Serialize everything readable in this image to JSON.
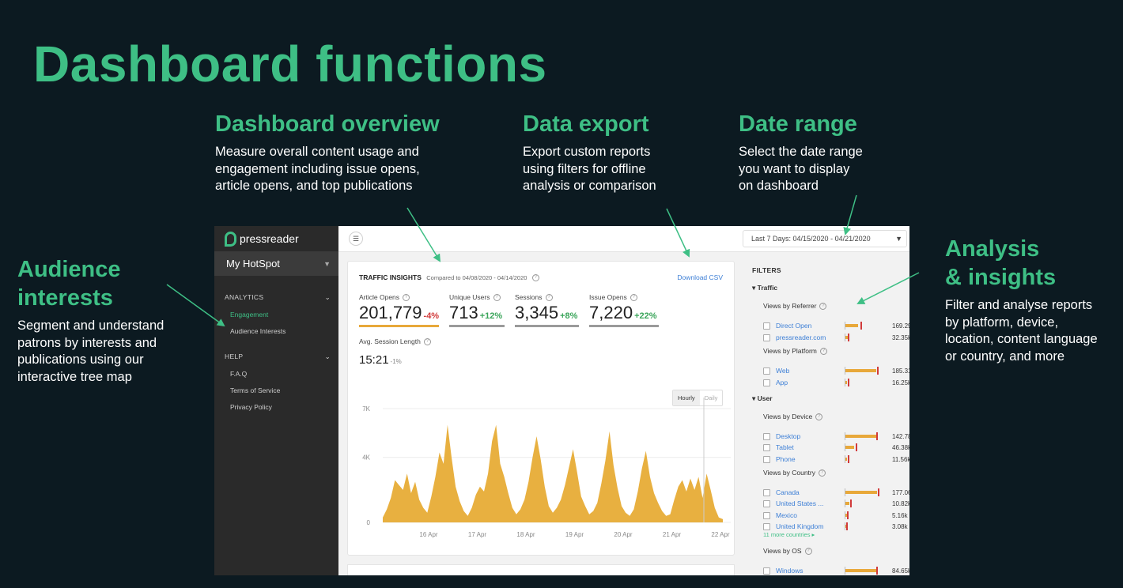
{
  "slide": {
    "title": "Dashboard functions",
    "accent": "#3ebf85",
    "background": "#0c1a21"
  },
  "callouts": {
    "overview": {
      "title": "Dashboard overview",
      "text": "Measure overall content usage and\nengagement including issue opens,\narticle opens, and top publications"
    },
    "export": {
      "title": "Data export",
      "text": "Export custom reports\nusing filters for offline\nanalysis or comparison"
    },
    "date_range": {
      "title": "Date range",
      "text": "Select the date range\nyou want to display\non dashboard"
    },
    "audience": {
      "title": "Audience\ninterests",
      "text": "Segment and understand\npatrons by interests and\npublications using our\ninteractive tree map"
    },
    "analysis": {
      "title": "Analysis\n& insights",
      "text": "Filter and analyse reports\nby platform, device,\nlocation, content language\nor country, and more"
    }
  },
  "dashboard": {
    "brand": "pressreader",
    "hotspot": "My HotSpot",
    "sidebar": {
      "analytics_label": "ANALYTICS",
      "analytics_items": [
        "Engagement",
        "Audience Interests"
      ],
      "help_label": "HELP",
      "help_items": [
        "F.A.Q",
        "Terms of Service",
        "Privacy Policy"
      ]
    },
    "date_select": "Last 7 Days: 04/15/2020 - 04/21/2020",
    "traffic": {
      "title": "TRAFFIC INSIGHTS",
      "compared": "Compared to 04/08/2020 - 04/14/2020",
      "download": "Download CSV",
      "metrics": [
        {
          "label": "Article Opens",
          "value": "201,779",
          "change": "-4%"
        },
        {
          "label": "Unique Users",
          "value": "713",
          "change": "+12%"
        },
        {
          "label": "Sessions",
          "value": "3,345",
          "change": "+8%"
        },
        {
          "label": "Issue Opens",
          "value": "7,220",
          "change": "+22%"
        }
      ],
      "session_label": "Avg. Session Length",
      "session_value": "15:21",
      "session_change": "-1%",
      "toggle": [
        "Hourly",
        "Daily"
      ]
    },
    "filters": {
      "title": "FILTERS",
      "traffic_label": "Traffic",
      "user_label": "User",
      "referrer_label": "Views by Referrer",
      "platform_label": "Views by Platform",
      "device_label": "Views by Device",
      "country_label": "Views by Country",
      "os_label": "Views by OS",
      "more_countries": "11 more countries ▸",
      "referrer": [
        {
          "name": "Direct Open",
          "value": "169.29k",
          "bar": 0.32,
          "tick": 0.38
        },
        {
          "name": "pressreader.com",
          "value": "32.35k",
          "bar": 0.06,
          "tick": 0.05
        }
      ],
      "platform": [
        {
          "name": "Web",
          "value": "185.31k",
          "bar": 0.78,
          "tick": 0.8
        },
        {
          "name": "App",
          "value": "16.25k",
          "bar": 0.04,
          "tick": 0.05
        }
      ],
      "device": [
        {
          "name": "Desktop",
          "value": "142.78k",
          "bar": 0.78,
          "tick": 0.78
        },
        {
          "name": "Tablet",
          "value": "46.38k",
          "bar": 0.22,
          "tick": 0.26
        },
        {
          "name": "Phone",
          "value": "11.56k",
          "bar": 0.04,
          "tick": 0.06
        }
      ],
      "country": [
        {
          "name": "Canada",
          "value": "177.06k",
          "bar": 0.8,
          "tick": 0.82
        },
        {
          "name": "United States ...",
          "value": "10.82k",
          "bar": 0.1,
          "tick": 0.12
        },
        {
          "name": "Mexico",
          "value": "5.16k",
          "bar": 0.03,
          "tick": 0.03
        },
        {
          "name": "United Kingdom",
          "value": "3.08k",
          "bar": 0.02,
          "tick": 0.02
        }
      ],
      "os": [
        {
          "name": "Windows",
          "value": "84.65k",
          "bar": 0.78,
          "tick": 0.78
        }
      ]
    }
  },
  "chart_data": {
    "type": "area",
    "title": "",
    "xlabel": "",
    "ylabel": "",
    "yticks": [
      "7K",
      "4K",
      "0"
    ],
    "ylim": [
      0,
      7000
    ],
    "categories": [
      "16 Apr",
      "17 Apr",
      "18 Apr",
      "19 Apr",
      "20 Apr",
      "21 Apr",
      "22 Apr"
    ],
    "series_color": "#e8b040",
    "x": [
      0,
      2,
      4,
      6,
      8,
      10,
      12,
      14,
      16,
      18,
      20,
      22,
      24,
      26,
      28,
      30,
      32,
      34,
      36,
      38,
      40,
      42,
      44,
      46,
      48,
      50,
      52,
      54,
      56,
      58,
      60,
      62,
      64,
      66,
      68,
      70,
      72,
      74,
      76,
      78,
      80,
      82,
      84,
      86,
      88,
      90,
      92,
      94,
      96,
      98,
      100,
      102,
      104,
      106,
      108,
      110,
      112,
      114,
      116,
      118,
      120,
      122,
      124,
      126,
      128,
      130,
      132,
      134,
      136,
      138,
      140,
      142,
      144,
      146,
      148,
      150,
      152,
      154,
      156,
      158,
      160,
      162,
      164,
      166,
      168
    ],
    "values": [
      300,
      800,
      1500,
      2600,
      2300,
      2000,
      3000,
      1800,
      2500,
      1400,
      900,
      600,
      1600,
      2800,
      4300,
      3600,
      6000,
      4000,
      2200,
      1300,
      700,
      400,
      900,
      1700,
      2200,
      1900,
      3000,
      5000,
      6000,
      3600,
      2800,
      1800,
      900,
      500,
      800,
      1400,
      2500,
      4000,
      5300,
      3900,
      2200,
      1000,
      600,
      900,
      1400,
      2300,
      3400,
      4500,
      3100,
      1600,
      1000,
      500,
      700,
      1200,
      2400,
      3800,
      5600,
      3500,
      2100,
      1000,
      600,
      400,
      800,
      1900,
      3300,
      4400,
      2800,
      1800,
      1200,
      700,
      400,
      500,
      1400,
      2200,
      2600,
      1900,
      2700,
      2000,
      2800,
      1500,
      3000,
      2000,
      900,
      300,
      200
    ]
  }
}
